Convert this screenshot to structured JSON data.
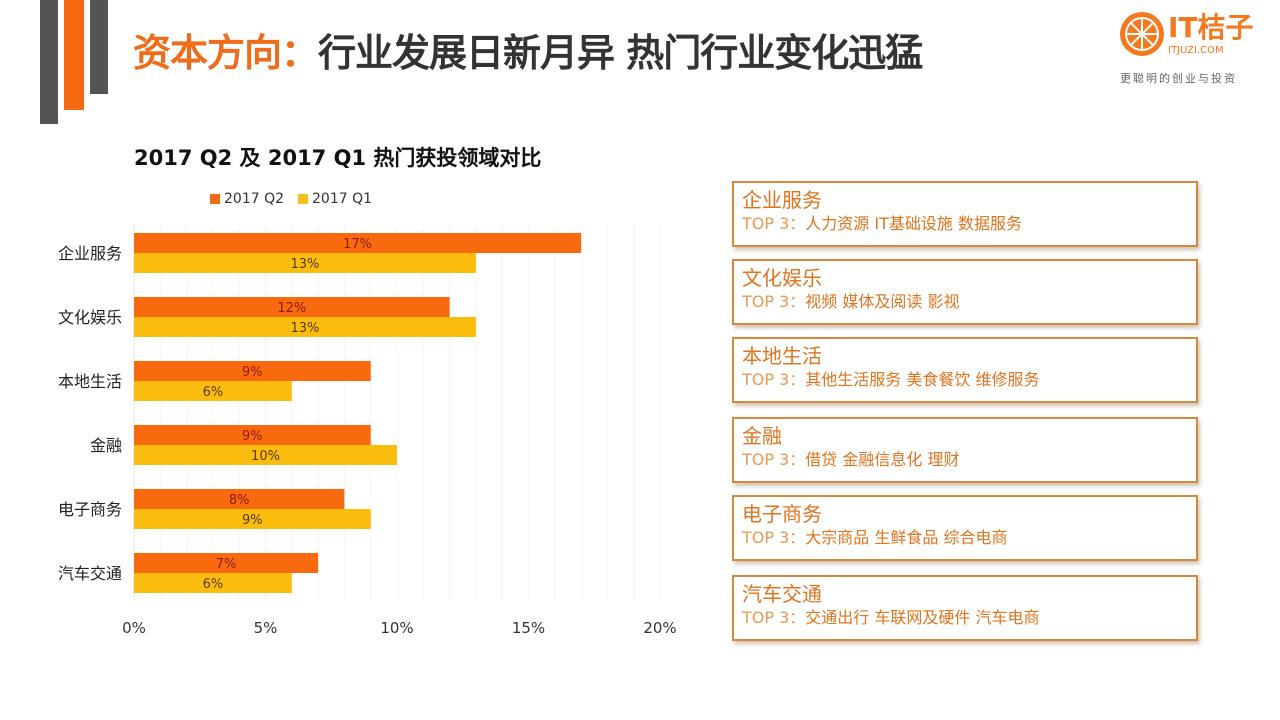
{
  "header": {
    "title_accent": "资本方向：",
    "title_main": "行业发展日新月异 热门行业变化迅猛"
  },
  "logo": {
    "name": "IT桔子",
    "url": "ITJUZI.COM",
    "slogan": "更聪明的创业与投资",
    "icon": "orange-slice-icon"
  },
  "colors": {
    "accent": "#f36a12",
    "q2": "#f86a0d",
    "q1": "#fbbd0d",
    "box_border": "#d7883f"
  },
  "chart_data": {
    "type": "bar",
    "orientation": "horizontal",
    "title": "2017 Q2 及 2017 Q1 热门获投领域对比",
    "categories": [
      "企业服务",
      "文化娱乐",
      "本地生活",
      "金融",
      "电子商务",
      "汽车交通"
    ],
    "series": [
      {
        "name": "2017 Q2",
        "values": [
          17,
          12,
          9,
          9,
          8,
          7
        ],
        "labels": [
          "17%",
          "12%",
          "9%",
          "9%",
          "8%",
          "7%"
        ]
      },
      {
        "name": "2017 Q1",
        "values": [
          13,
          13,
          6,
          10,
          9,
          6
        ],
        "labels": [
          "13%",
          "13%",
          "6%",
          "10%",
          "9%",
          "6%"
        ]
      }
    ],
    "xlim": [
      0,
      20
    ],
    "xticks": [
      0,
      5,
      10,
      15,
      20
    ],
    "xtick_labels": [
      "0%",
      "5%",
      "10%",
      "15%",
      "20%"
    ],
    "unit": "%",
    "grid": true,
    "legend_position": "top"
  },
  "boxes": [
    {
      "title": "企业服务",
      "prefix": "TOP 3：",
      "items": "人力资源 IT基础设施 数据服务"
    },
    {
      "title": "文化娱乐",
      "prefix": "TOP 3：",
      "items": "视频 媒体及阅读 影视"
    },
    {
      "title": "本地生活",
      "prefix": "TOP 3：",
      "items": "其他生活服务 美食餐饮 维修服务"
    },
    {
      "title": "金融",
      "prefix": "TOP 3：",
      "items": "借贷 金融信息化 理财"
    },
    {
      "title": "电子商务",
      "prefix": "TOP 3：",
      "items": "大宗商品 生鲜食品 综合电商"
    },
    {
      "title": "汽车交通",
      "prefix": "TOP 3：",
      "items": "交通出行 车联网及硬件 汽车电商"
    }
  ]
}
